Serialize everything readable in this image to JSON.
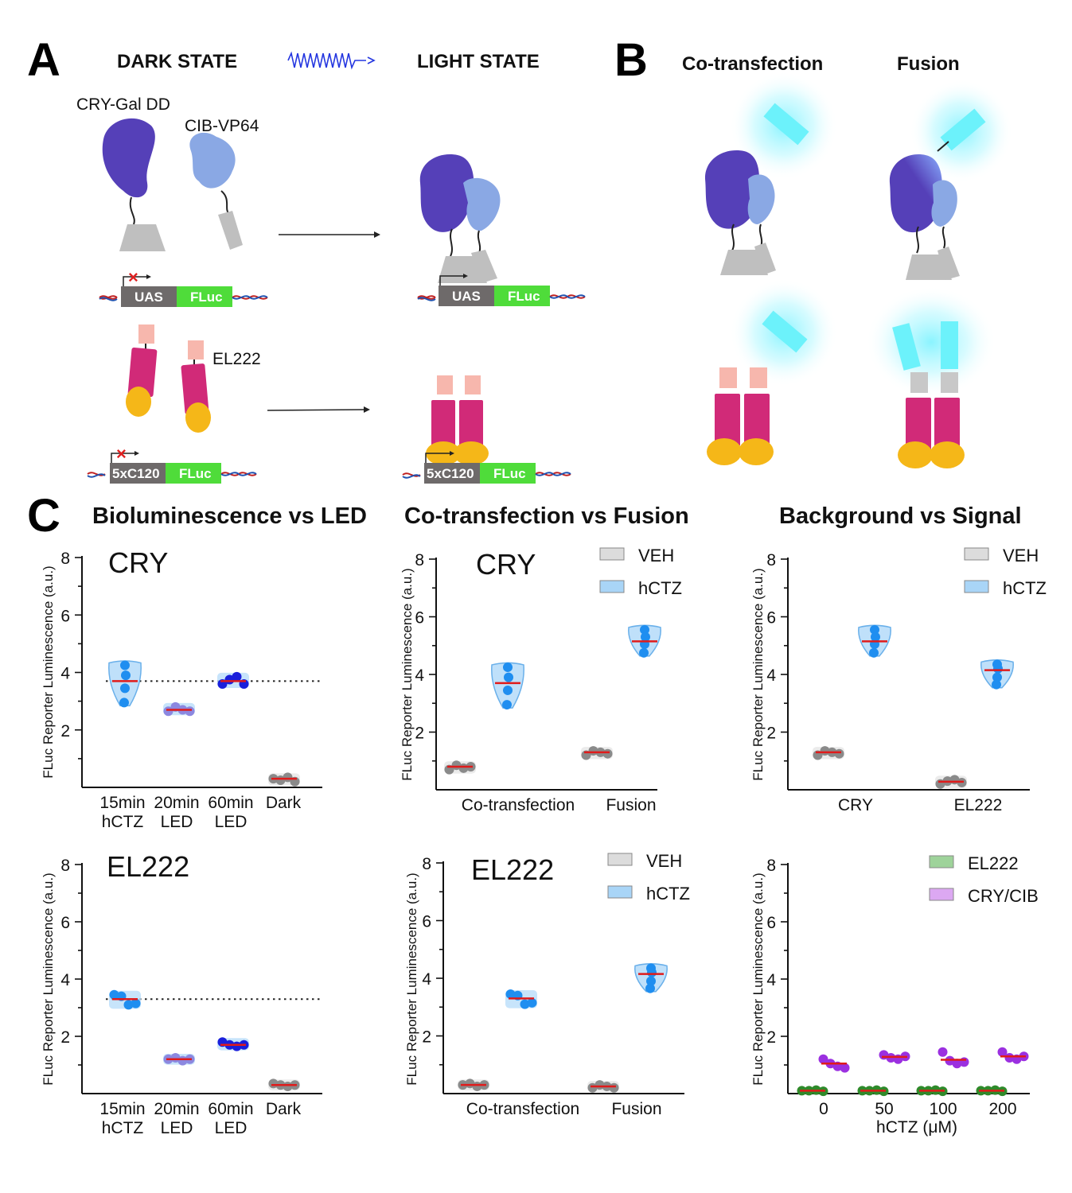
{
  "panel_a": {
    "label": "A",
    "dark_state": "DARK STATE",
    "light_state": "LIGHT STATE",
    "cry_gal_label": "CRY-Gal DD",
    "cib_vp64_label": "CIB-VP64",
    "el222_label": "EL222",
    "uas_label": "UAS",
    "fluc_label": "FLuc",
    "c120_label": "5xC120"
  },
  "panel_b": {
    "label": "B",
    "cotransfection": "Co-transfection",
    "fusion": "Fusion"
  },
  "panel_c": {
    "label": "C",
    "col1_title": "Bioluminescence vs LED",
    "col2_title": "Co-transfection  vs Fusion",
    "col3_title": "Background vs Signal",
    "y_label": "FLuc Reporter Luminescence (a.u.)"
  },
  "chart_data": [
    {
      "type": "violin-scatter",
      "title": "CRY",
      "ylim": [
        0,
        8
      ],
      "yticks": [
        "2",
        "4",
        "6",
        "8"
      ],
      "ylabel": "FLuc Reporter Luminescence (a.u.)",
      "reference_line": 3.7,
      "categories": [
        [
          "15min",
          "hCTZ"
        ],
        [
          "20min",
          "LED"
        ],
        [
          "60min",
          "LED"
        ],
        [
          "Dark"
        ]
      ],
      "groups": [
        {
          "category": 0,
          "color": "#a9d5f7",
          "points": [
            4.25,
            3.9,
            3.45,
            2.95
          ],
          "mean": 3.7
        },
        {
          "category": 1,
          "color": "#8c88e0",
          "points": [
            2.65,
            2.8,
            2.7,
            2.65
          ],
          "mean": 2.7
        },
        {
          "category": 2,
          "color": "#1a1fdb",
          "points": [
            3.6,
            3.75,
            3.85,
            3.6
          ],
          "mean": 3.7
        },
        {
          "category": 3,
          "color": "#9a9a9a",
          "points": [
            0.3,
            0.25,
            0.35,
            0.2
          ],
          "mean": 0.3
        }
      ]
    },
    {
      "type": "violin-scatter",
      "title": "CRY",
      "ylim": [
        0,
        8
      ],
      "yticks": [
        "2",
        "4",
        "6",
        "8"
      ],
      "ylabel": "FLuc Reporter Luminescence (a.u.)",
      "categories": [
        [
          "Co-transfection"
        ],
        [
          "Fusion"
        ]
      ],
      "legend": [
        {
          "name": "VEH",
          "color": "#dcdcdc"
        },
        {
          "name": "hCTZ",
          "color": "#a9d5f7"
        }
      ],
      "groups": [
        {
          "category": 0,
          "series": "VEH",
          "color": "#9a9a9a",
          "points": [
            0.7,
            0.85,
            0.75,
            0.8
          ],
          "mean": 0.8
        },
        {
          "category": 0,
          "series": "hCTZ",
          "color": "#a9d5f7",
          "points": [
            4.25,
            3.9,
            3.45,
            2.95
          ],
          "mean": 3.7
        },
        {
          "category": 1,
          "series": "VEH",
          "color": "#9a9a9a",
          "points": [
            1.2,
            1.35,
            1.3,
            1.25
          ],
          "mean": 1.3
        },
        {
          "category": 1,
          "series": "hCTZ",
          "color": "#a9d5f7",
          "points": [
            5.55,
            5.3,
            5.05,
            4.75
          ],
          "mean": 5.15
        }
      ]
    },
    {
      "type": "violin-scatter",
      "title": "",
      "ylim": [
        0,
        8
      ],
      "yticks": [
        "2",
        "4",
        "6",
        "8"
      ],
      "ylabel": "FLuc Reporter Luminescence (a.u.)",
      "categories": [
        [
          "CRY"
        ],
        [
          "EL222"
        ]
      ],
      "legend": [
        {
          "name": "VEH",
          "color": "#dcdcdc"
        },
        {
          "name": "hCTZ",
          "color": "#a9d5f7"
        }
      ],
      "groups": [
        {
          "category": 0,
          "series": "VEH",
          "color": "#9a9a9a",
          "points": [
            1.2,
            1.35,
            1.3,
            1.25
          ],
          "mean": 1.3
        },
        {
          "category": 0,
          "series": "hCTZ",
          "color": "#a9d5f7",
          "points": [
            5.55,
            5.3,
            5.05,
            4.75
          ],
          "mean": 5.15
        },
        {
          "category": 1,
          "series": "VEH",
          "color": "#9a9a9a",
          "points": [
            0.2,
            0.3,
            0.35,
            0.25
          ],
          "mean": 0.28
        },
        {
          "category": 1,
          "series": "hCTZ",
          "color": "#a9d5f7",
          "points": [
            4.35,
            4.2,
            3.9,
            3.65
          ],
          "mean": 4.15
        }
      ]
    },
    {
      "type": "violin-scatter",
      "title": "EL222",
      "ylim": [
        0,
        8
      ],
      "yticks": [
        "2",
        "4",
        "6",
        "8"
      ],
      "ylabel": "FLuc Reporter Luminescence (a.u.)",
      "reference_line": 3.3,
      "categories": [
        [
          "15min",
          "hCTZ"
        ],
        [
          "20min",
          "LED"
        ],
        [
          "60min",
          "LED"
        ],
        [
          "Dark"
        ]
      ],
      "groups": [
        {
          "category": 0,
          "color": "#a9d5f7",
          "points": [
            3.45,
            3.4,
            3.1,
            3.15
          ],
          "mean": 3.3
        },
        {
          "category": 1,
          "color": "#8c88e0",
          "points": [
            1.2,
            1.25,
            1.15,
            1.2
          ],
          "mean": 1.2
        },
        {
          "category": 2,
          "color": "#1a1fdb",
          "points": [
            1.8,
            1.7,
            1.65,
            1.7
          ],
          "mean": 1.7
        },
        {
          "category": 3,
          "color": "#9a9a9a",
          "points": [
            0.35,
            0.3,
            0.25,
            0.3
          ],
          "mean": 0.3
        }
      ]
    },
    {
      "type": "violin-scatter",
      "title": "EL222",
      "ylim": [
        0,
        8
      ],
      "yticks": [
        "2",
        "4",
        "6",
        "8"
      ],
      "ylabel": "FLuc Reporter Luminescence (a.u.)",
      "categories": [
        [
          "Co-transfection"
        ],
        [
          "Fusion"
        ]
      ],
      "legend": [
        {
          "name": "VEH",
          "color": "#dcdcdc"
        },
        {
          "name": "hCTZ",
          "color": "#a9d5f7"
        }
      ],
      "groups": [
        {
          "category": 0,
          "series": "VEH",
          "color": "#9a9a9a",
          "points": [
            0.3,
            0.35,
            0.25,
            0.3
          ],
          "mean": 0.3
        },
        {
          "category": 0,
          "series": "hCTZ",
          "color": "#a9d5f7",
          "points": [
            3.45,
            3.4,
            3.1,
            3.15
          ],
          "mean": 3.3
        },
        {
          "category": 1,
          "series": "VEH",
          "color": "#9a9a9a",
          "points": [
            0.2,
            0.3,
            0.25,
            0.2
          ],
          "mean": 0.25
        },
        {
          "category": 1,
          "series": "hCTZ",
          "color": "#a9d5f7",
          "points": [
            4.35,
            4.2,
            3.9,
            3.65
          ],
          "mean": 4.15
        }
      ]
    },
    {
      "type": "scatter",
      "title": "",
      "ylim": [
        0,
        8
      ],
      "yticks": [
        "2",
        "4",
        "6",
        "8"
      ],
      "ylabel": "FLuc Reporter Luminescence (a.u.)",
      "xlabel": "hCTZ (μM)",
      "categories": [
        [
          "0"
        ],
        [
          "50"
        ],
        [
          "100"
        ],
        [
          "200"
        ]
      ],
      "legend": [
        {
          "name": "EL222",
          "color": "#9ed39a"
        },
        {
          "name": "CRY/CIB",
          "color": "#dca8f2"
        }
      ],
      "groups": [
        {
          "category": 0,
          "series": "EL222",
          "color": "#2f8a2a",
          "points": [
            0.1,
            0.1,
            0.12,
            0.08
          ],
          "mean": 0.1
        },
        {
          "category": 0,
          "series": "CRY/CIB",
          "color": "#9b30e0",
          "points": [
            1.2,
            1.05,
            0.95,
            0.9
          ],
          "mean": 1.05
        },
        {
          "category": 1,
          "series": "EL222",
          "color": "#2f8a2a",
          "points": [
            0.1,
            0.1,
            0.12,
            0.08
          ],
          "mean": 0.1
        },
        {
          "category": 1,
          "series": "CRY/CIB",
          "color": "#9b30e0",
          "points": [
            1.35,
            1.25,
            1.2,
            1.3
          ],
          "mean": 1.28
        },
        {
          "category": 2,
          "series": "EL222",
          "color": "#2f8a2a",
          "points": [
            0.1,
            0.1,
            0.12,
            0.08
          ],
          "mean": 0.1
        },
        {
          "category": 2,
          "series": "CRY/CIB",
          "color": "#9b30e0",
          "points": [
            1.45,
            1.15,
            1.05,
            1.1
          ],
          "mean": 1.18
        },
        {
          "category": 3,
          "series": "EL222",
          "color": "#2f8a2a",
          "points": [
            0.1,
            0.1,
            0.12,
            0.08
          ],
          "mean": 0.1
        },
        {
          "category": 3,
          "series": "CRY/CIB",
          "color": "#9b30e0",
          "points": [
            1.45,
            1.25,
            1.2,
            1.3
          ],
          "mean": 1.3
        }
      ]
    }
  ]
}
